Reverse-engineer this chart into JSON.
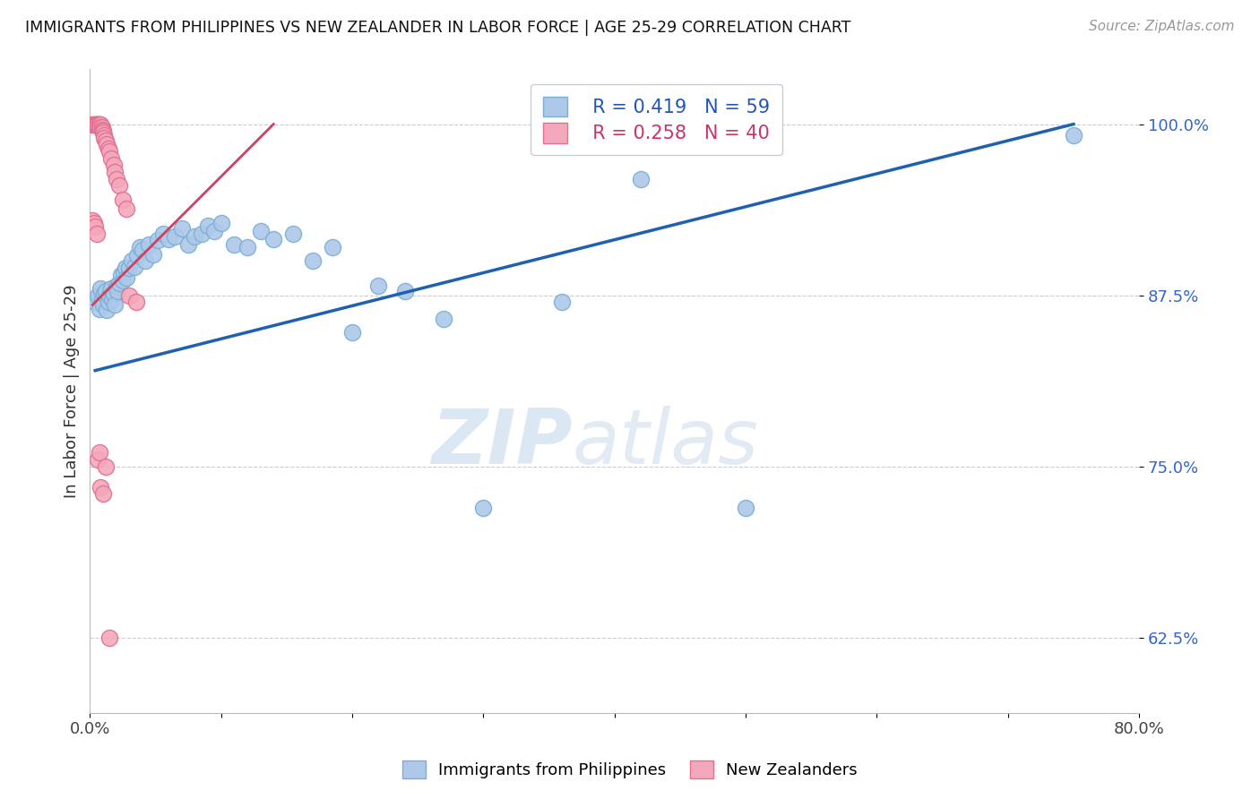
{
  "title": "IMMIGRANTS FROM PHILIPPINES VS NEW ZEALANDER IN LABOR FORCE | AGE 25-29 CORRELATION CHART",
  "source": "Source: ZipAtlas.com",
  "ylabel": "In Labor Force | Age 25-29",
  "xlim": [
    0.0,
    0.8
  ],
  "ylim": [
    0.57,
    1.04
  ],
  "xtick_positions": [
    0.0,
    0.1,
    0.2,
    0.3,
    0.4,
    0.5,
    0.6,
    0.7,
    0.8
  ],
  "xticklabels": [
    "0.0%",
    "",
    "",
    "",
    "",
    "",
    "",
    "",
    "80.0%"
  ],
  "ytick_positions": [
    0.625,
    0.75,
    0.875,
    1.0
  ],
  "ytick_labels": [
    "62.5%",
    "75.0%",
    "87.5%",
    "100.0%"
  ],
  "blue_R": 0.419,
  "blue_N": 59,
  "pink_R": 0.258,
  "pink_N": 40,
  "blue_color": "#adc8e8",
  "blue_edge": "#7aafd4",
  "pink_color": "#f4a8bb",
  "pink_edge": "#e07090",
  "blue_line_color": "#2060b0",
  "pink_line_color": "#d04060",
  "legend_label_blue": "Immigrants from Philippines",
  "legend_label_pink": "New Zealanders",
  "blue_x": [
    0.004,
    0.006,
    0.007,
    0.008,
    0.009,
    0.01,
    0.011,
    0.012,
    0.013,
    0.014,
    0.015,
    0.016,
    0.017,
    0.018,
    0.019,
    0.02,
    0.021,
    0.022,
    0.024,
    0.025,
    0.026,
    0.027,
    0.028,
    0.03,
    0.032,
    0.034,
    0.036,
    0.038,
    0.04,
    0.042,
    0.045,
    0.048,
    0.052,
    0.056,
    0.06,
    0.065,
    0.07,
    0.075,
    0.08,
    0.085,
    0.09,
    0.095,
    0.1,
    0.11,
    0.12,
    0.13,
    0.14,
    0.155,
    0.17,
    0.185,
    0.2,
    0.22,
    0.24,
    0.27,
    0.3,
    0.36,
    0.42,
    0.5,
    0.75
  ],
  "blue_y": [
    0.87,
    0.875,
    0.865,
    0.88,
    0.872,
    0.868,
    0.876,
    0.878,
    0.864,
    0.87,
    0.875,
    0.88,
    0.872,
    0.876,
    0.868,
    0.882,
    0.878,
    0.884,
    0.89,
    0.886,
    0.892,
    0.895,
    0.888,
    0.895,
    0.9,
    0.896,
    0.904,
    0.91,
    0.908,
    0.9,
    0.912,
    0.905,
    0.915,
    0.92,
    0.916,
    0.918,
    0.924,
    0.912,
    0.918,
    0.92,
    0.926,
    0.922,
    0.928,
    0.912,
    0.91,
    0.922,
    0.916,
    0.92,
    0.9,
    0.91,
    0.848,
    0.882,
    0.878,
    0.858,
    0.72,
    0.87,
    0.96,
    0.72,
    0.992
  ],
  "pink_x": [
    0.002,
    0.003,
    0.004,
    0.005,
    0.005,
    0.006,
    0.006,
    0.007,
    0.007,
    0.008,
    0.008,
    0.009,
    0.009,
    0.01,
    0.01,
    0.011,
    0.011,
    0.012,
    0.013,
    0.014,
    0.015,
    0.016,
    0.018,
    0.019,
    0.02,
    0.022,
    0.025,
    0.028,
    0.03,
    0.035,
    0.002,
    0.003,
    0.004,
    0.005,
    0.006,
    0.007,
    0.008,
    0.01,
    0.012,
    0.015
  ],
  "pink_y": [
    1.0,
    1.0,
    1.0,
    1.0,
    1.0,
    1.0,
    1.0,
    1.0,
    1.0,
    1.0,
    0.998,
    0.998,
    0.996,
    0.995,
    0.994,
    0.992,
    0.99,
    0.988,
    0.985,
    0.982,
    0.98,
    0.975,
    0.97,
    0.965,
    0.96,
    0.955,
    0.945,
    0.938,
    0.875,
    0.87,
    0.93,
    0.928,
    0.925,
    0.92,
    0.755,
    0.76,
    0.735,
    0.73,
    0.75,
    0.625
  ],
  "blue_trend_x": [
    0.004,
    0.75
  ],
  "blue_trend_y": [
    0.82,
    1.0
  ],
  "pink_trend_x": [
    0.002,
    0.14
  ],
  "pink_trend_y": [
    0.868,
    1.0
  ]
}
